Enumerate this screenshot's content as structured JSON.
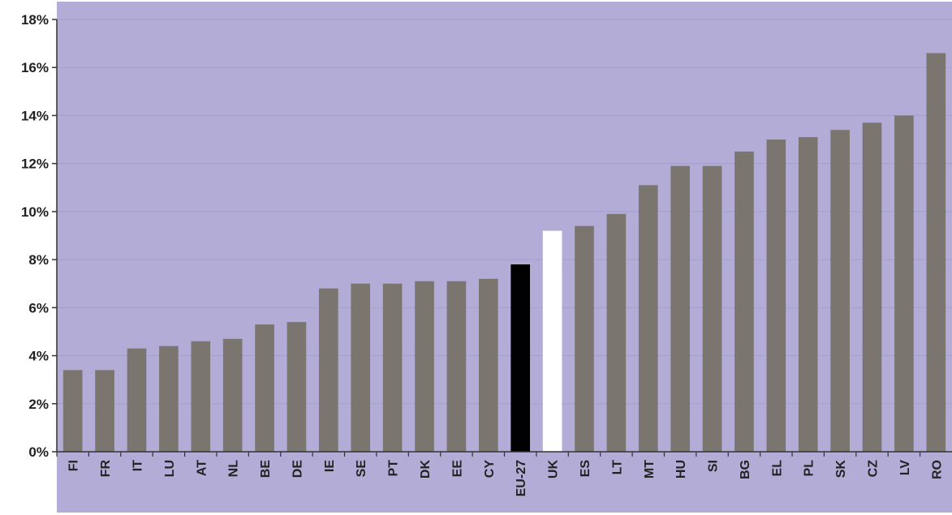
{
  "chart_data": {
    "type": "bar",
    "categories": [
      "FI",
      "FR",
      "IT",
      "LU",
      "AT",
      "NL",
      "BE",
      "DE",
      "IE",
      "SE",
      "PT",
      "DK",
      "EE",
      "CY",
      "EU-27",
      "UK",
      "ES",
      "LT",
      "MT",
      "HU",
      "SI",
      "BG",
      "EL",
      "PL",
      "SK",
      "CZ",
      "LV",
      "RO"
    ],
    "values": [
      3.4,
      3.4,
      4.3,
      4.4,
      4.6,
      4.7,
      5.3,
      5.4,
      6.8,
      7.0,
      7.0,
      7.1,
      7.1,
      7.2,
      7.8,
      9.2,
      9.4,
      9.9,
      11.1,
      11.9,
      11.9,
      12.5,
      13.0,
      13.1,
      13.4,
      13.7,
      14.0,
      16.6
    ],
    "ylim": [
      0,
      18
    ],
    "ytick_step": 2,
    "ytick_labels": [
      "0%",
      "2%",
      "4%",
      "6%",
      "8%",
      "10%",
      "12%",
      "14%",
      "16%",
      "18%"
    ],
    "xlabel": "",
    "ylabel": "",
    "title": "",
    "grid": true,
    "highlight": {
      "EU-27": "#000000",
      "UK": "#ffffff"
    }
  },
  "colors": {
    "plot_background": "#b3acd6",
    "outer_background": "#ffffff",
    "bar": "#7a756f",
    "gridline": "#a59fcc",
    "axis": "#333333"
  }
}
